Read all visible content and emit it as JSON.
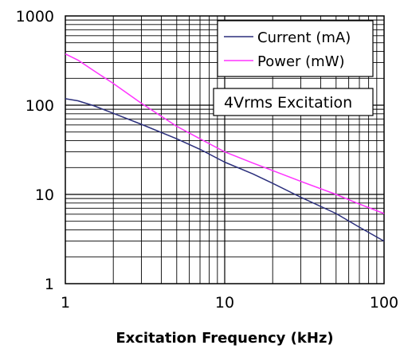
{
  "chart_data": {
    "type": "line",
    "xlabel": "Excitation Frequency (kHz)",
    "ylabel": "",
    "x_scale": "log",
    "y_scale": "log",
    "xlim": [
      1,
      100
    ],
    "ylim": [
      1,
      1000
    ],
    "x_ticks": [
      "1",
      "10",
      "100"
    ],
    "y_ticks": [
      "1",
      "10",
      "100",
      "1000"
    ],
    "grid": true,
    "legend_position": "top-right",
    "annotation": "4Vrms Excitation",
    "series": [
      {
        "name": "Current (mA)",
        "color": "#2b2f7c",
        "x": [
          1,
          1.2,
          1.5,
          2,
          3,
          5,
          7,
          10,
          15,
          20,
          30,
          50,
          70,
          100
        ],
        "y": [
          118,
          112,
          99,
          81,
          61,
          42,
          32,
          23,
          17,
          13.3,
          9.3,
          6.1,
          4.3,
          3.0
        ]
      },
      {
        "name": "Power (mW)",
        "color": "#ff33ff",
        "x": [
          1,
          1.2,
          1.5,
          2,
          3,
          5,
          7,
          10,
          15,
          20,
          30,
          50,
          70,
          100
        ],
        "y": [
          375,
          320,
          245,
          175,
          105,
          58,
          42,
          30,
          22.5,
          18.5,
          14,
          10,
          7.8,
          6.1
        ]
      }
    ]
  }
}
